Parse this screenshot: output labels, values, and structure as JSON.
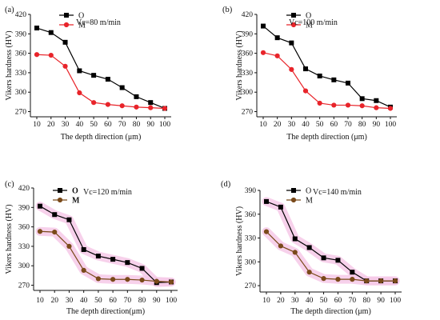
{
  "chart_data": [
    {
      "type": "line",
      "panel_label": "(a)",
      "condition": "Vc=80 m/min",
      "xlabel": "The depth direction (μm)",
      "ylabel": "Vikers hardness (HV)",
      "x": [
        10,
        20,
        30,
        40,
        50,
        60,
        70,
        80,
        90,
        100
      ],
      "xlim": [
        10,
        100
      ],
      "ylim": [
        262,
        420
      ],
      "yticks": [
        270,
        300,
        330,
        360,
        390,
        420
      ],
      "series": [
        {
          "name": "O",
          "color": "#000000",
          "marker": "square",
          "values": [
            399,
            392,
            377,
            333,
            326,
            320,
            307,
            293,
            284,
            275
          ]
        },
        {
          "name": "M",
          "color": "#e8242a",
          "marker": "circle",
          "values": [
            358,
            357,
            340,
            299,
            284,
            281,
            279,
            277,
            276,
            275
          ]
        }
      ],
      "legend_position": "top-left",
      "highlight": false
    },
    {
      "type": "line",
      "panel_label": "(b)",
      "condition": "Vc=100 m/min",
      "xlabel": "The depth direction (μm)",
      "ylabel": "Vikers hardness (HV)",
      "x": [
        10,
        20,
        30,
        40,
        50,
        60,
        70,
        80,
        90,
        100
      ],
      "xlim": [
        10,
        100
      ],
      "ylim": [
        262,
        420
      ],
      "yticks": [
        270,
        300,
        330,
        360,
        390,
        420
      ],
      "series": [
        {
          "name": "O",
          "color": "#000000",
          "marker": "square",
          "values": [
            402,
            384,
            376,
            336,
            325,
            319,
            314,
            290,
            287,
            277
          ]
        },
        {
          "name": "M",
          "color": "#e8242a",
          "marker": "circle",
          "values": [
            361,
            356,
            335,
            302,
            283,
            280,
            280,
            279,
            276,
            275
          ]
        }
      ],
      "legend_position": "top-left",
      "highlight": false
    },
    {
      "type": "line",
      "panel_label": "(c)",
      "condition": "Vc=120 m/min",
      "xlabel": "The depth direction(μm)",
      "ylabel": "Vikers hardness (HV)",
      "x": [
        10,
        20,
        30,
        40,
        50,
        60,
        70,
        80,
        90,
        100
      ],
      "xlim": [
        10,
        100
      ],
      "ylim": [
        262,
        420
      ],
      "yticks": [
        270,
        300,
        330,
        360,
        390,
        420
      ],
      "series": [
        {
          "name": "O",
          "color": "#000000",
          "marker": "square",
          "values": [
            392,
            379,
            371,
            325,
            315,
            310,
            305,
            296,
            274,
            275
          ]
        },
        {
          "name": "M",
          "color": "#7a4a1a",
          "marker": "circle",
          "values": [
            353,
            352,
            330,
            293,
            280,
            279,
            279,
            278,
            276,
            275
          ]
        }
      ],
      "legend_position": "top-left",
      "highlight": true
    },
    {
      "type": "line",
      "panel_label": "(d)",
      "condition": "Vc=140 m/min",
      "xlabel": "The depth direction (μm)",
      "ylabel": "Vikers hardness (HV)",
      "x": [
        10,
        20,
        30,
        40,
        50,
        60,
        70,
        80,
        90,
        100
      ],
      "xlim": [
        10,
        100
      ],
      "ylim": [
        262,
        390
      ],
      "yticks": [
        270,
        300,
        330,
        360,
        390
      ],
      "series": [
        {
          "name": "O",
          "color": "#000000",
          "marker": "square",
          "values": [
            376,
            369,
            329,
            318,
            305,
            302,
            287,
            276,
            276,
            276
          ]
        },
        {
          "name": "M",
          "color": "#7a4a1a",
          "marker": "circle",
          "values": [
            338,
            320,
            312,
            287,
            279,
            278,
            278,
            276,
            276,
            276
          ]
        }
      ],
      "legend_position": "top-left",
      "highlight": true
    }
  ]
}
